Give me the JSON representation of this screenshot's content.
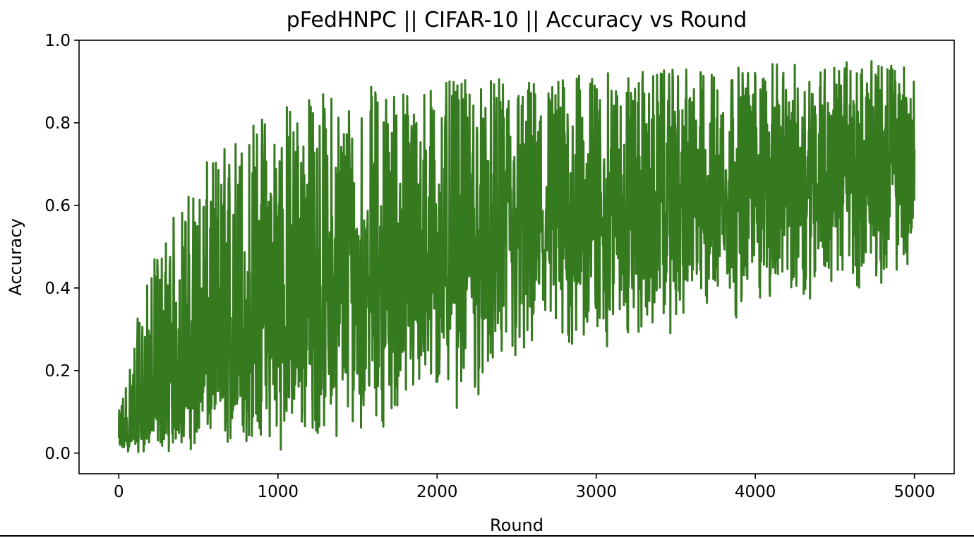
{
  "chart_data": {
    "type": "line",
    "title": "pFedHNPC || CIFAR-10 || Accuracy vs Round",
    "xlabel": "Round",
    "ylabel": "Accuracy",
    "xlim": [
      -250,
      5250
    ],
    "ylim": [
      -0.05,
      1.0
    ],
    "xticks": [
      0,
      1000,
      2000,
      3000,
      4000,
      5000
    ],
    "xtick_labels": [
      "0",
      "1000",
      "2000",
      "3000",
      "4000",
      "5000"
    ],
    "yticks": [
      0.0,
      0.2,
      0.4,
      0.6,
      0.8,
      1.0
    ],
    "ytick_labels": [
      "0.0",
      "0.2",
      "0.4",
      "0.6",
      "0.8",
      "1.0"
    ],
    "grid": false,
    "legend": "none",
    "series": [
      {
        "color": "#367a1f",
        "trend": {
          "x": [
            0,
            100,
            200,
            300,
            400,
            500,
            750,
            1000,
            1250,
            1500,
            1750,
            2000,
            2500,
            3000,
            3500,
            4000,
            4500,
            5000
          ],
          "mean": [
            0.02,
            0.05,
            0.09,
            0.13,
            0.17,
            0.2,
            0.26,
            0.31,
            0.36,
            0.4,
            0.44,
            0.47,
            0.53,
            0.58,
            0.62,
            0.66,
            0.68,
            0.7
          ],
          "low": [
            0.0,
            0.0,
            0.0,
            0.0,
            0.0,
            0.0,
            0.0,
            0.0,
            0.02,
            0.05,
            0.06,
            0.08,
            0.15,
            0.22,
            0.28,
            0.33,
            0.38,
            0.42
          ],
          "high": [
            0.1,
            0.3,
            0.45,
            0.55,
            0.62,
            0.68,
            0.8,
            0.86,
            0.88,
            0.89,
            0.9,
            0.9,
            0.91,
            0.92,
            0.93,
            0.94,
            0.95,
            0.95
          ]
        },
        "rounds": 5000
      }
    ]
  }
}
